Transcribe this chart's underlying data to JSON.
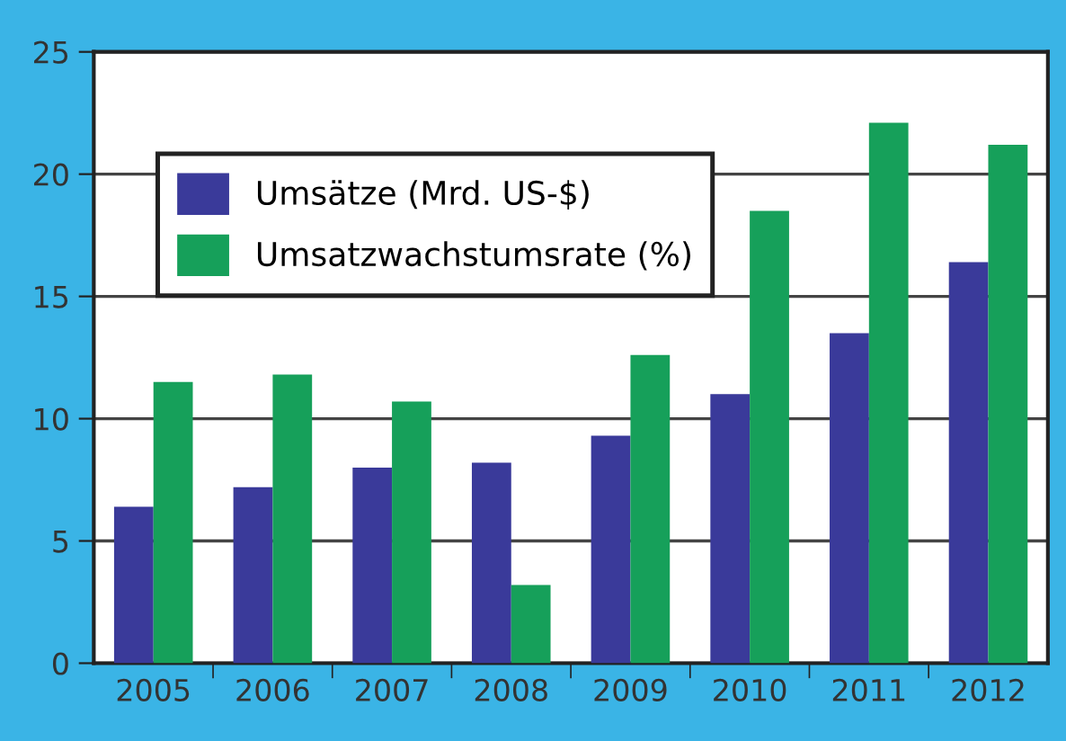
{
  "chart_data": {
    "type": "bar",
    "categories": [
      "2005",
      "2006",
      "2007",
      "2008",
      "2009",
      "2010",
      "2011",
      "2012"
    ],
    "series": [
      {
        "name": "Umsätze (Mrd. US-$)",
        "color": "#3a3a9a",
        "values": [
          6.4,
          7.2,
          8.0,
          8.2,
          9.3,
          11.0,
          13.5,
          16.4
        ]
      },
      {
        "name": "Umsatzwachstumsrate (%)",
        "color": "#16a05a",
        "values": [
          11.5,
          11.8,
          10.7,
          3.2,
          12.6,
          18.5,
          22.1,
          21.2
        ]
      }
    ],
    "ylim": [
      0,
      25
    ],
    "yticks": [
      0,
      5,
      10,
      15,
      20,
      25
    ],
    "grid": "y",
    "legend": "top left"
  }
}
